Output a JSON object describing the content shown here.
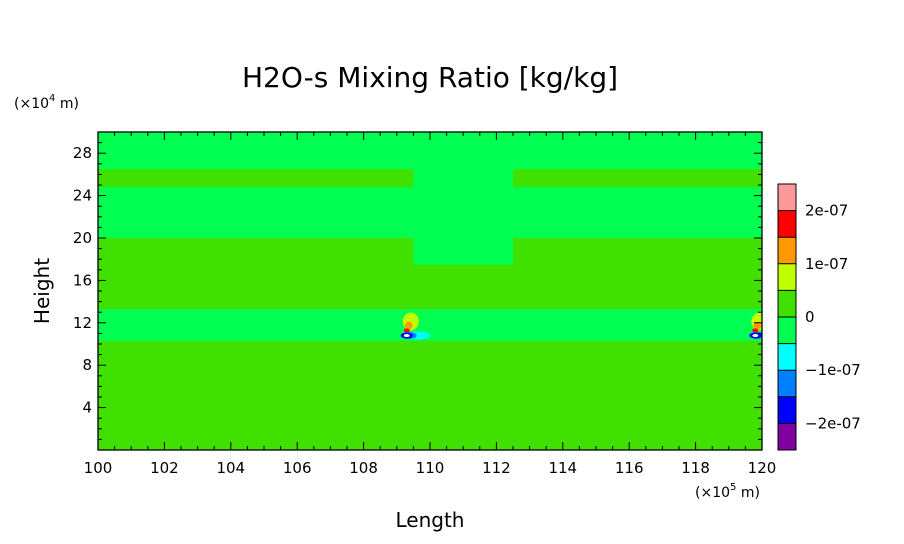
{
  "chart_data": {
    "type": "heatmap",
    "title": "H2O-s Mixing Ratio [kg/kg]",
    "xlabel": "Length",
    "ylabel": "Height",
    "x_unit_prefix": "(×10",
    "x_unit_exp": "5",
    "x_unit_suffix": " m)",
    "y_unit_prefix": "(×10",
    "y_unit_exp": "4",
    "y_unit_suffix": " m)",
    "xlim": [
      100,
      120
    ],
    "ylim": [
      0,
      30
    ],
    "x_ticks": [
      100,
      102,
      104,
      106,
      108,
      110,
      112,
      114,
      116,
      118,
      120
    ],
    "y_ticks": [
      4,
      8,
      12,
      16,
      20,
      24,
      28
    ],
    "colorbar": {
      "range": [
        -2.5e-07,
        2.5e-07
      ],
      "levels": [
        {
          "from": -2.5e-07,
          "to": -2e-07,
          "color": "#8000a0"
        },
        {
          "from": -2e-07,
          "to": -1.5e-07,
          "color": "#0000ff"
        },
        {
          "from": -1.5e-07,
          "to": -1e-07,
          "color": "#0080ff"
        },
        {
          "from": -1e-07,
          "to": -5e-08,
          "color": "#00ffff"
        },
        {
          "from": -5e-08,
          "to": 0,
          "color": "#00ff50"
        },
        {
          "from": 0,
          "to": 5e-08,
          "color": "#40e000"
        },
        {
          "from": 5e-08,
          "to": 1e-07,
          "color": "#c0ff00"
        },
        {
          "from": 1e-07,
          "to": 1.5e-07,
          "color": "#ff9900"
        },
        {
          "from": 1.5e-07,
          "to": 2e-07,
          "color": "#ff0000"
        },
        {
          "from": 2e-07,
          "to": 2.5e-07,
          "color": "#ff9999"
        }
      ],
      "tick_values": [
        2e-07,
        1e-07,
        0,
        -1e-07,
        -2e-07
      ],
      "tick_labels": [
        "2e-07",
        "1e-07",
        "0",
        "−1e-07",
        "−2e-07"
      ]
    },
    "background_color": "#40e000",
    "regions": [
      {
        "level": "-5e-08..0",
        "x": [
          100,
          120
        ],
        "y": [
          26.5,
          30
        ]
      },
      {
        "level": "-5e-08..0",
        "x": [
          100,
          120
        ],
        "y": [
          20,
          24.8
        ]
      },
      {
        "level": "-5e-08..0",
        "x": [
          100,
          120
        ],
        "y": [
          10.3,
          13.3
        ]
      },
      {
        "level": "-5e-08..0",
        "x": [
          109.5,
          112.5
        ],
        "y": [
          17.5,
          30
        ]
      }
    ],
    "features": [
      {
        "x": 109.3,
        "y": 10.8,
        "min_level": "-2.5e-07",
        "max_level": "2.5e-07"
      },
      {
        "x": 119.8,
        "y": 10.8,
        "min_level": "-2.5e-07",
        "max_level": "2e-07"
      }
    ]
  }
}
